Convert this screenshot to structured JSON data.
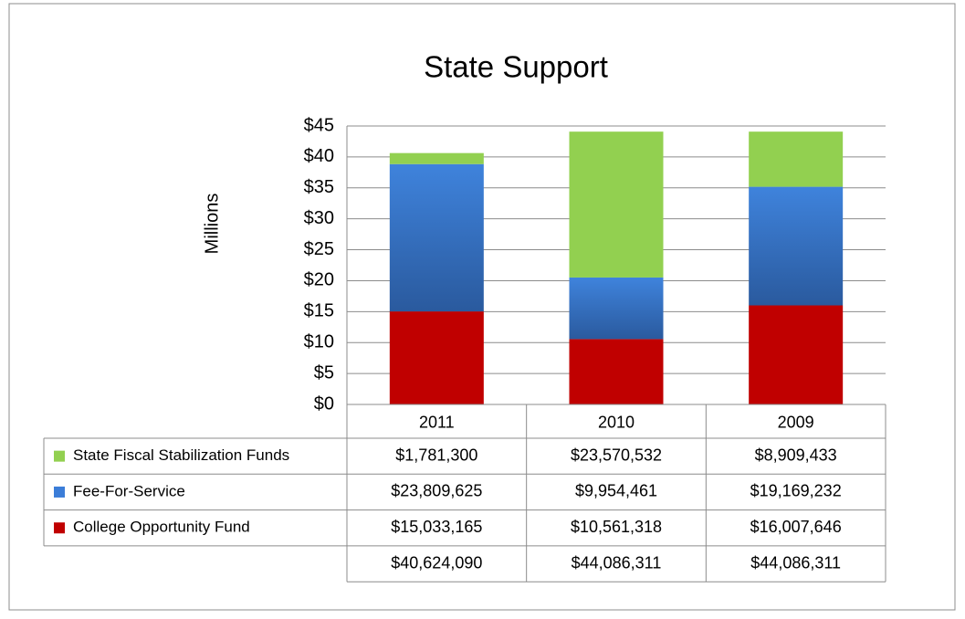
{
  "chart_data": {
    "type": "stacked_bar",
    "title": "State Support",
    "y_label": "Millions",
    "categories": [
      "2011",
      "2010",
      "2009"
    ],
    "series": [
      {
        "name": "State Fiscal Stabilization Funds",
        "color": "#92d050",
        "values": [
          1.7813,
          23.570532,
          8.909433
        ],
        "value_labels": [
          "$1,781,300",
          "$23,570,532",
          "$8,909,433"
        ]
      },
      {
        "name": "Fee-For-Service",
        "color": "#3b7dd8",
        "values": [
          23.809625,
          9.954461,
          19.169232
        ],
        "value_labels": [
          "$23,809,625",
          "$9,954,461",
          "$19,169,232"
        ]
      },
      {
        "name": "College Opportunity Fund",
        "color": "#c00000",
        "values": [
          15.033165,
          10.561318,
          16.007646
        ],
        "value_labels": [
          "$15,033,165",
          "$10,561,318",
          "$16,007,646"
        ]
      }
    ],
    "totals": {
      "values": [
        40.62409,
        44.086311,
        44.086311
      ],
      "value_labels": [
        "$40,624,090",
        "$44,086,311",
        "$44,086,311"
      ]
    },
    "ylim": [
      0,
      45
    ],
    "yticks": [
      {
        "value": 0,
        "label": "$0"
      },
      {
        "value": 5,
        "label": "$5"
      },
      {
        "value": 10,
        "label": "$10"
      },
      {
        "value": 15,
        "label": "$15"
      },
      {
        "value": 20,
        "label": "$20"
      },
      {
        "value": 25,
        "label": "$25"
      },
      {
        "value": 30,
        "label": "$30"
      },
      {
        "value": 35,
        "label": "$35"
      },
      {
        "value": 40,
        "label": "$40"
      },
      {
        "value": 45,
        "label": "$45"
      }
    ],
    "grid": true
  }
}
